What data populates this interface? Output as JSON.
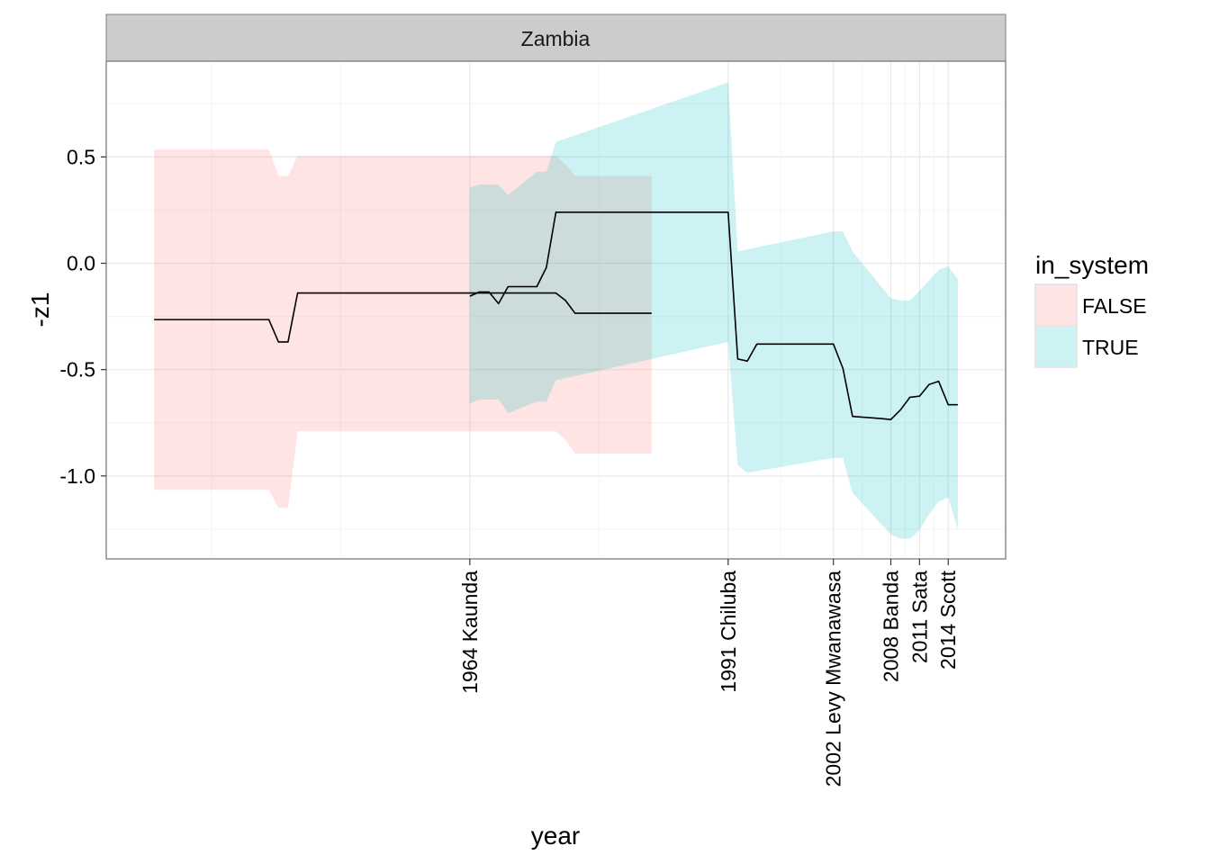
{
  "chart_data": {
    "type": "line",
    "facet": "Zambia",
    "xlabel": "year",
    "ylabel": "-z1",
    "xlim": [
      1926,
      2020
    ],
    "ylim": [
      -1.39,
      0.95
    ],
    "grid": true,
    "y_ticks": [
      {
        "value": 0.5,
        "label": "0.5"
      },
      {
        "value": 0.0,
        "label": "0.0"
      },
      {
        "value": -0.5,
        "label": "-0.5"
      },
      {
        "value": -1.0,
        "label": "-1.0"
      }
    ],
    "x_ticks": [
      {
        "value": 1964,
        "label": "1964 Kaunda"
      },
      {
        "value": 1991,
        "label": "1991 Chiluba"
      },
      {
        "value": 2002,
        "label": "2002 Levy Mwanawasa"
      },
      {
        "value": 2008,
        "label": "2008 Banda"
      },
      {
        "value": 2011,
        "label": "2011 Sata"
      },
      {
        "value": 2014,
        "label": "2014 Scott"
      }
    ],
    "legend": {
      "title": "in_system",
      "position": "right",
      "entries": [
        {
          "label": "FALSE",
          "color": "#F8766D"
        },
        {
          "label": "TRUE",
          "color": "#00BFC4"
        }
      ]
    },
    "series": [
      {
        "name": "FALSE",
        "color": "#F8766D",
        "x": [
          1931,
          1943,
          1944,
          1945,
          1946,
          1973,
          1974,
          1975,
          1983
        ],
        "y": [
          -0.265,
          -0.265,
          -0.37,
          -0.37,
          -0.14,
          -0.14,
          -0.175,
          -0.235,
          -0.235
        ],
        "lower": [
          -1.065,
          -1.065,
          -1.15,
          -1.15,
          -0.79,
          -0.79,
          -0.83,
          -0.895,
          -0.895
        ],
        "upper": [
          0.535,
          0.535,
          0.41,
          0.41,
          0.505,
          0.505,
          0.465,
          0.41,
          0.41
        ]
      },
      {
        "name": "TRUE",
        "color": "#00BFC4",
        "x": [
          1964,
          1965,
          1967,
          1968,
          1971,
          1972,
          1973,
          1991,
          1992,
          1993,
          2002,
          2003,
          2004,
          2008,
          2009,
          2010,
          2011,
          2012,
          2013,
          2014,
          2015
        ],
        "y": [
          -0.155,
          -0.135,
          -0.135,
          -0.19,
          -0.11,
          -0.11,
          -0.02,
          0.24,
          -0.45,
          -0.46,
          -0.38,
          -0.38,
          -0.495,
          -0.72,
          -0.735,
          -0.735,
          -0.69,
          -0.63,
          -0.57,
          -0.555,
          -0.665
        ],
        "lower": [
          -0.66,
          -0.64,
          -0.64,
          -0.705,
          -0.65,
          -0.65,
          -0.55,
          -0.37,
          -0.95,
          -0.985,
          -0.915,
          -0.915,
          -1.08,
          -1.275,
          -1.295,
          -1.295,
          -1.255,
          -1.18,
          -1.12,
          -1.1,
          -1.25
        ],
        "upper": [
          0.355,
          0.37,
          0.37,
          0.32,
          0.43,
          0.43,
          0.57,
          0.85,
          0.055,
          0.065,
          0.15,
          0.15,
          0.055,
          -0.165,
          -0.175,
          -0.175,
          -0.13,
          -0.08,
          -0.03,
          -0.015,
          -0.075
        ],
        "x_line": [
          1964,
          1965,
          1966,
          1967,
          1968,
          1969,
          1971,
          1972,
          1973,
          1991,
          1992,
          1993,
          1994,
          2002,
          2003,
          2004,
          2007,
          2008,
          2009,
          2010,
          2011,
          2012,
          2013,
          2014,
          2015
        ],
        "y_line": [
          -0.155,
          -0.135,
          -0.135,
          -0.19,
          -0.11,
          -0.11,
          -0.11,
          -0.02,
          0.24,
          0.24,
          -0.45,
          -0.46,
          -0.38,
          -0.38,
          -0.495,
          -0.72,
          -0.73,
          -0.735,
          -0.69,
          -0.63,
          -0.625,
          -0.57,
          -0.555,
          -0.665,
          -0.665
        ]
      }
    ]
  }
}
